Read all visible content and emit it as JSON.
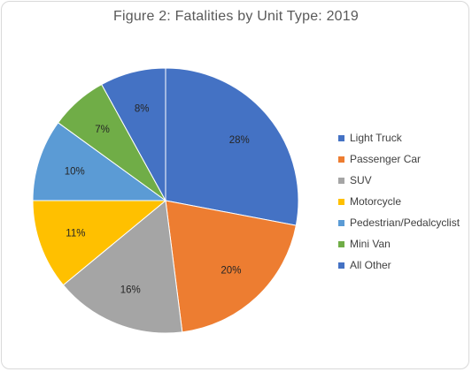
{
  "chart_data": {
    "type": "pie",
    "title": "Figure 2: Fatalities by Unit Type: 2019",
    "categories": [
      "Light Truck",
      "Passenger Car",
      "SUV",
      "Motorcycle",
      "Pedestrian/Pedalcyclist",
      "Mini Van",
      "All Other"
    ],
    "values": [
      28,
      20,
      16,
      11,
      10,
      7,
      8
    ],
    "labels": [
      "28%",
      "20%",
      "16%",
      "11%",
      "10%",
      "7%",
      "8%"
    ],
    "colors": [
      "#4472c4",
      "#ed7d31",
      "#a5a5a5",
      "#ffc000",
      "#5b9bd5",
      "#70ad47",
      "#4472c4"
    ],
    "legend_position": "right"
  }
}
